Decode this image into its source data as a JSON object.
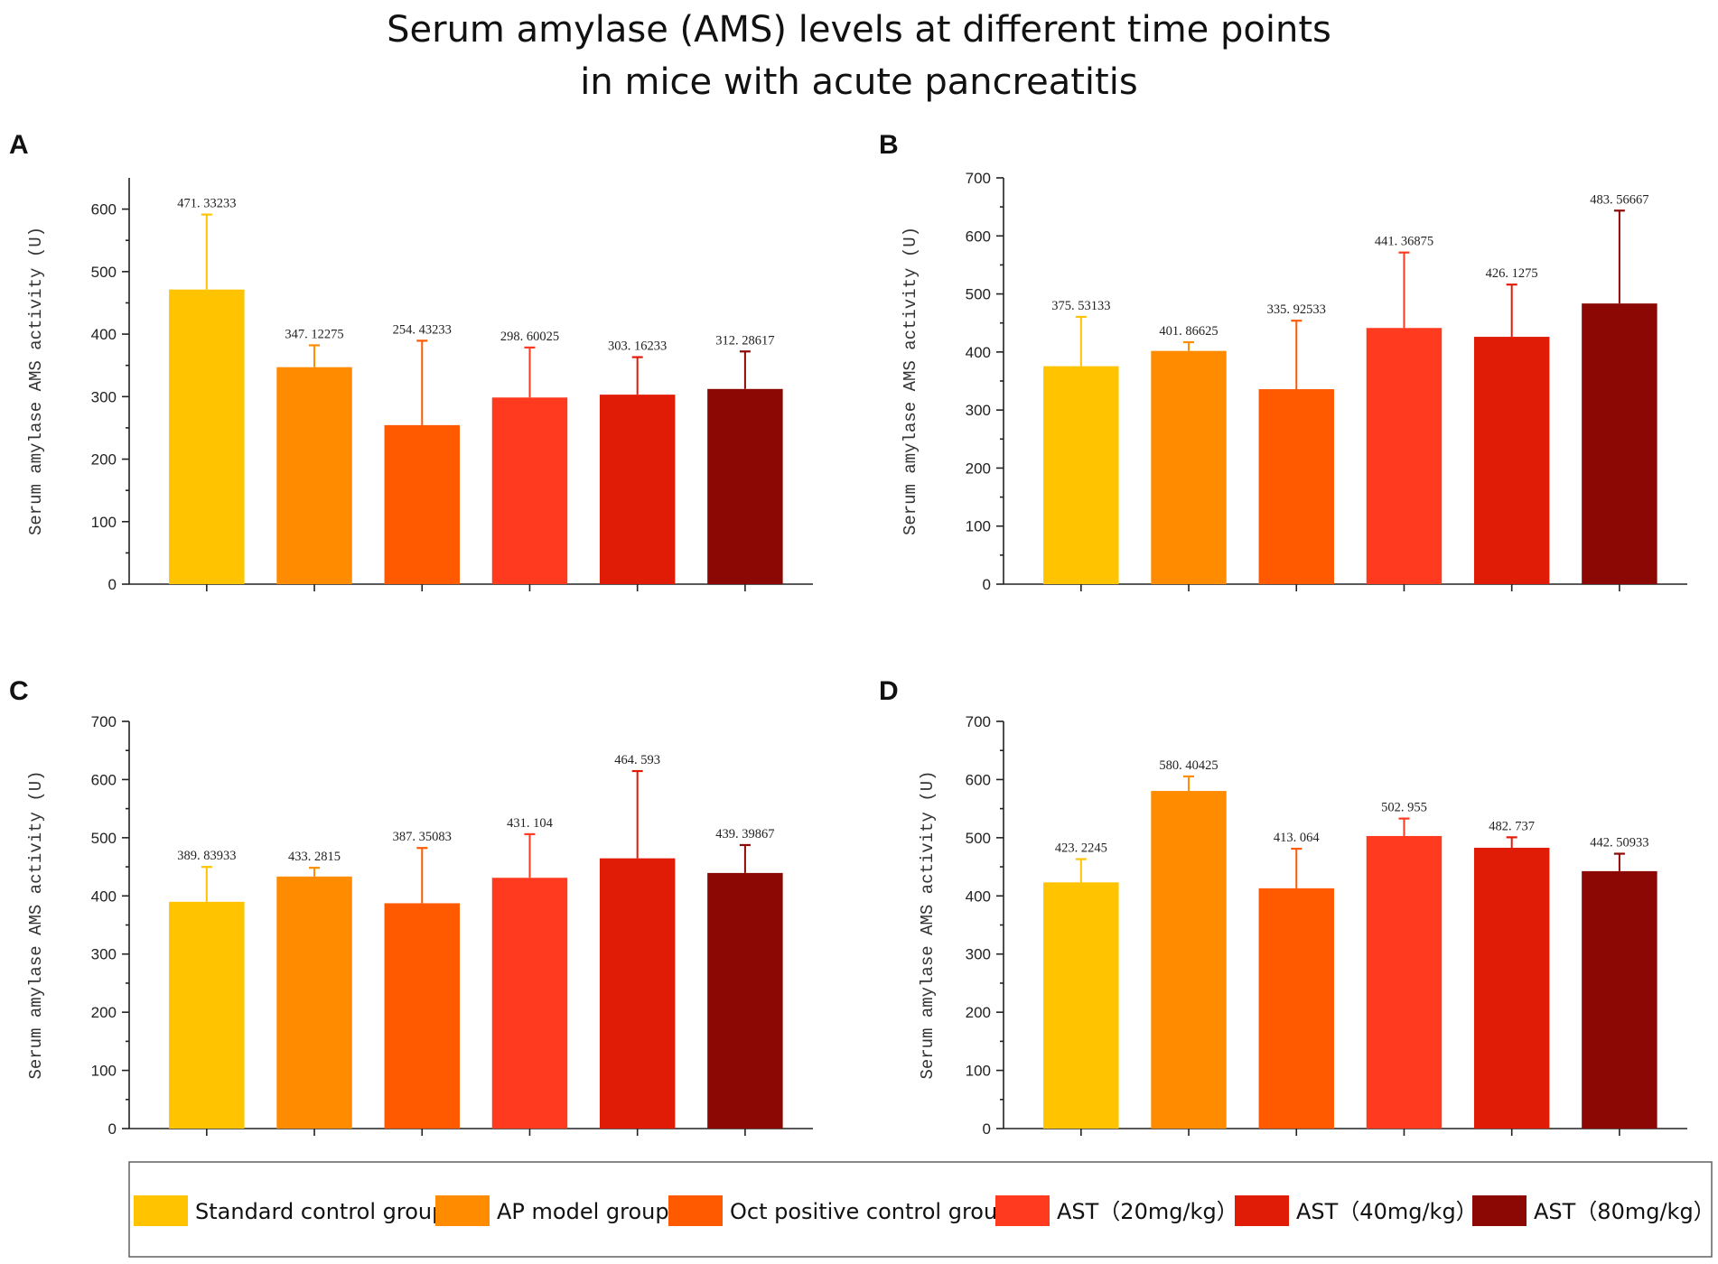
{
  "title_lines": [
    "Serum amylase (AMS) levels at different time points",
    "in mice with acute pancreatitis"
  ],
  "legend": {
    "items": [
      {
        "label": "Standard control group",
        "color": "#FFC300"
      },
      {
        "label": "AP model group",
        "color": "#FF8C00"
      },
      {
        "label": "Oct positive control group",
        "color": "#FF5A00"
      },
      {
        "label": "AST（20mg/kg）",
        "color": "#FF3A1F"
      },
      {
        "label": "AST（40mg/kg）",
        "color": "#E01B06"
      },
      {
        "label": "AST（80mg/kg）",
        "color": "#8B0804"
      }
    ]
  },
  "chart_data": [
    {
      "panel": "A",
      "type": "bar",
      "ylabel": "Serum amylase AMS activity (U)",
      "ylim": [
        0,
        650
      ],
      "yticks": [
        0,
        100,
        200,
        300,
        400,
        500,
        600
      ],
      "categories": [
        "Standard control group",
        "AP model group",
        "Oct positive control group",
        "AST（20mg/kg）",
        "AST（40mg/kg）",
        "AST（80mg/kg）"
      ],
      "values": [
        471.33233,
        347.12275,
        254.43233,
        298.60025,
        303.16233,
        312.28617
      ],
      "value_labels": [
        "471. 33233",
        "347. 12275",
        "254. 43233",
        "298. 60025",
        "303. 16233",
        "312. 28617"
      ],
      "errors": [
        120,
        35,
        135,
        80,
        60,
        60
      ]
    },
    {
      "panel": "B",
      "type": "bar",
      "ylabel": "Serum amylase AMS activity (U)",
      "ylim": [
        0,
        700
      ],
      "yticks": [
        0,
        100,
        200,
        300,
        400,
        500,
        600,
        700
      ],
      "categories": [
        "Standard control group",
        "AP model group",
        "Oct positive control group",
        "AST（20mg/kg）",
        "AST（40mg/kg）",
        "AST（80mg/kg）"
      ],
      "values": [
        375.53133,
        401.86625,
        335.92533,
        441.36875,
        426.1275,
        483.56667
      ],
      "value_labels": [
        "375. 53133",
        "401. 86625",
        "335. 92533",
        "441. 36875",
        "426. 1275",
        "483. 56667"
      ],
      "errors": [
        85,
        15,
        118,
        130,
        90,
        160
      ]
    },
    {
      "panel": "C",
      "type": "bar",
      "ylabel": "Serum amylase AMS activity (U)",
      "ylim": [
        0,
        700
      ],
      "yticks": [
        0,
        100,
        200,
        300,
        400,
        500,
        600,
        700
      ],
      "categories": [
        "Standard control group",
        "AP model group",
        "Oct positive control group",
        "AST（20mg/kg）",
        "AST（40mg/kg）",
        "AST（80mg/kg）"
      ],
      "values": [
        389.83933,
        433.2815,
        387.35083,
        431.104,
        464.593,
        439.39867
      ],
      "value_labels": [
        "389. 83933",
        "433. 2815",
        "387. 35083",
        "431. 104",
        "464. 593",
        "439. 39867"
      ],
      "errors": [
        60,
        15,
        95,
        75,
        150,
        48
      ]
    },
    {
      "panel": "D",
      "type": "bar",
      "ylabel": "Serum amylase AMS activity (U)",
      "ylim": [
        0,
        700
      ],
      "yticks": [
        0,
        100,
        200,
        300,
        400,
        500,
        600,
        700
      ],
      "categories": [
        "Standard control group",
        "AP model group",
        "Oct positive control group",
        "AST（20mg/kg）",
        "AST（40mg/kg）",
        "AST（80mg/kg）"
      ],
      "values": [
        423.2245,
        580.40425,
        413.064,
        502.955,
        482.737,
        442.50933
      ],
      "value_labels": [
        "423. 2245",
        "580. 40425",
        "413. 064",
        "502. 955",
        "482. 737",
        "442. 50933"
      ],
      "errors": [
        40,
        25,
        68,
        30,
        18,
        30
      ]
    }
  ]
}
